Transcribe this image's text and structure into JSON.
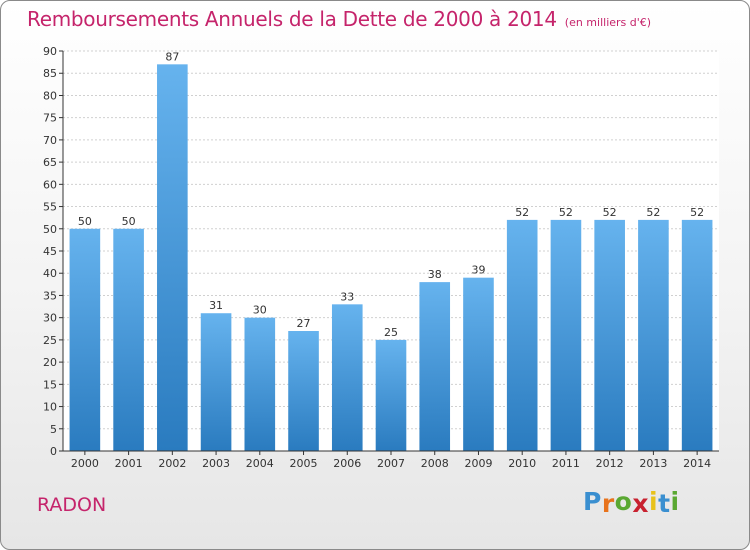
{
  "title": "Remboursements Annuels de la Dette de 2000 à 2014",
  "subtitle": "(en milliers d'€)",
  "commune": "RADON",
  "logo": {
    "letters": [
      "P",
      "r",
      "o",
      "x",
      "i",
      "t",
      "i"
    ],
    "colors": [
      "#3a8fd0",
      "#e8731c",
      "#5aa832",
      "#c8212f",
      "#e8c21c",
      "#3a8fd0",
      "#5aa832"
    ]
  },
  "colors": {
    "title": "#c5246b",
    "bar_top": "#66b3ee",
    "bar_bottom": "#2a7bbf",
    "axis": "#333333",
    "grid": "#d0d0d0"
  },
  "chart_data": {
    "type": "bar",
    "title": "Remboursements Annuels de la Dette de 2000 à 2014",
    "subtitle": "(en milliers d'€)",
    "categories": [
      "2000",
      "2001",
      "2002",
      "2003",
      "2004",
      "2005",
      "2006",
      "2007",
      "2008",
      "2009",
      "2010",
      "2011",
      "2012",
      "2013",
      "2014"
    ],
    "values": [
      50,
      50,
      87,
      31,
      30,
      27,
      33,
      25,
      38,
      39,
      52,
      52,
      52,
      52,
      52
    ],
    "ylim": [
      0,
      90
    ],
    "yticks": [
      0,
      5,
      10,
      15,
      20,
      25,
      30,
      35,
      40,
      45,
      50,
      55,
      60,
      65,
      70,
      75,
      80,
      85,
      90
    ],
    "grid": true,
    "data_labels": true
  }
}
